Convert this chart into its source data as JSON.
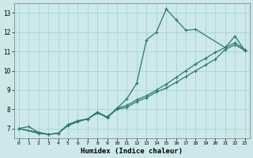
{
  "xlabel": "Humidex (Indice chaleur)",
  "bg_color": "#cce8e8",
  "grid_color": "#aad4d4",
  "line_color": "#2a7a6e",
  "xlim": [
    -0.5,
    23.5
  ],
  "ylim": [
    6.5,
    13.5
  ],
  "xticks": [
    0,
    1,
    2,
    3,
    4,
    5,
    6,
    7,
    8,
    9,
    10,
    11,
    12,
    13,
    14,
    15,
    16,
    17,
    18,
    19,
    20,
    21,
    22,
    23
  ],
  "yticks": [
    7,
    8,
    9,
    10,
    11,
    12,
    13
  ],
  "series": [
    {
      "x": [
        0,
        1,
        2,
        3,
        4,
        5,
        6,
        7,
        8,
        9,
        10,
        11,
        12,
        13,
        14,
        15,
        16,
        17,
        18,
        19,
        20,
        21,
        22,
        23
      ],
      "y": [
        7.0,
        7.1,
        6.8,
        6.7,
        6.75,
        7.15,
        7.35,
        7.5,
        7.8,
        7.6,
        8.0,
        8.1,
        8.4,
        8.6,
        8.9,
        9.1,
        9.4,
        9.7,
        10.0,
        10.3,
        10.6,
        11.1,
        11.35,
        11.05
      ]
    },
    {
      "x": [
        0,
        2,
        3,
        4,
        5,
        6,
        7,
        8,
        9,
        10,
        11,
        12,
        13,
        14,
        15,
        16,
        17,
        18,
        19,
        20,
        21,
        22,
        23
      ],
      "y": [
        7.0,
        6.8,
        6.7,
        6.75,
        7.2,
        7.4,
        7.5,
        7.85,
        7.6,
        8.05,
        8.2,
        8.5,
        8.7,
        9.0,
        9.3,
        9.65,
        10.0,
        10.35,
        10.65,
        10.95,
        11.2,
        11.45,
        11.1
      ]
    },
    {
      "x": [
        0,
        2,
        3,
        4,
        5,
        6,
        7,
        8,
        9,
        10,
        11,
        12,
        13,
        14,
        15,
        16,
        17,
        18,
        21,
        22,
        23
      ],
      "y": [
        7.0,
        6.75,
        6.7,
        6.75,
        7.2,
        7.4,
        7.5,
        7.85,
        7.55,
        8.05,
        8.55,
        9.35,
        11.6,
        12.0,
        13.2,
        12.65,
        12.1,
        12.15,
        11.2,
        11.8,
        11.05
      ]
    }
  ]
}
